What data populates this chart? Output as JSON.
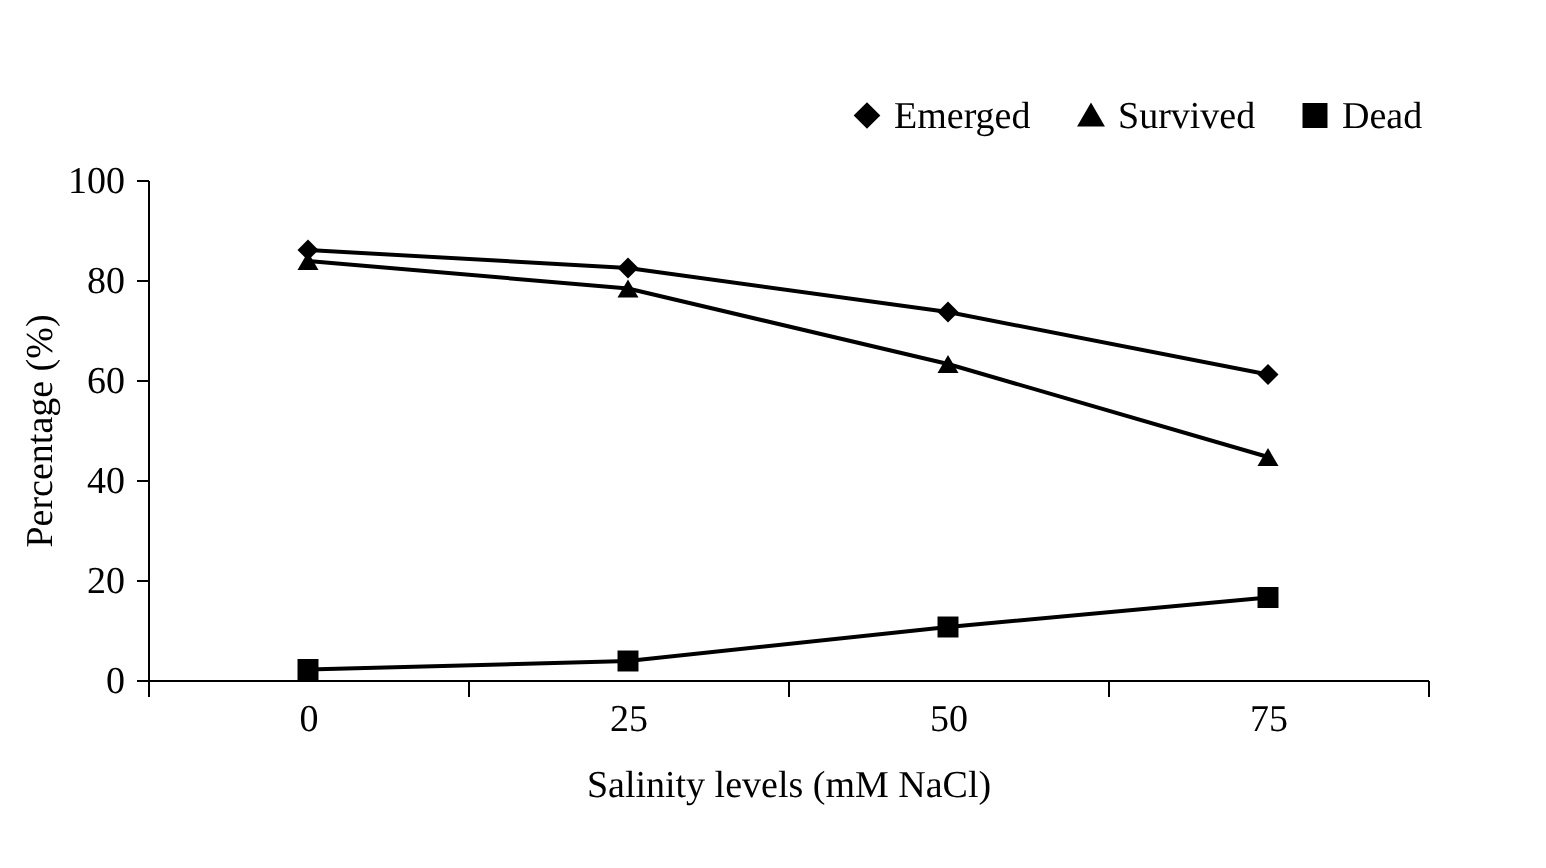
{
  "chart_data": {
    "type": "line",
    "xlabel": "Salinity levels (mM NaCl)",
    "ylabel": "Percentage (%)",
    "categories": [
      "0",
      "25",
      "50",
      "75"
    ],
    "series": [
      {
        "name": "Emerged",
        "color": "#000000",
        "marker": "diamond",
        "values": [
          86,
          82.4,
          73.6,
          61.1
        ]
      },
      {
        "name": "Survived",
        "color": "#000000",
        "marker": "triangle",
        "values": [
          83.8,
          78.3,
          63.2,
          44.6
        ]
      },
      {
        "name": "Dead",
        "color": "#000000",
        "marker": "square",
        "values": [
          2.1,
          3.8,
          10.6,
          16.5
        ]
      }
    ],
    "ylim": [
      0,
      100
    ],
    "yticks": [
      0,
      20,
      40,
      60,
      80,
      100
    ],
    "grid": false,
    "legend": "top right",
    "line_style": "solid"
  }
}
